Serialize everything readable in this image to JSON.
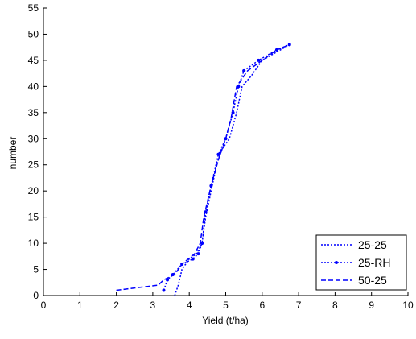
{
  "chart_data": {
    "type": "line",
    "xlabel": "Yield (t/ha)",
    "ylabel": "number",
    "xlim": [
      0,
      10
    ],
    "ylim": [
      0,
      55
    ],
    "xticks": [
      0,
      1,
      2,
      3,
      4,
      5,
      6,
      7,
      8,
      9,
      10
    ],
    "yticks": [
      0,
      5,
      10,
      15,
      20,
      25,
      30,
      35,
      40,
      45,
      50,
      55
    ],
    "legend": "lower right",
    "series": [
      {
        "name": "25-25",
        "color": "#0000ff",
        "style": "dotted",
        "x": [
          3.6,
          3.7,
          3.8,
          4.0,
          4.2,
          4.35,
          4.45,
          4.6,
          4.75,
          4.9,
          5.1,
          5.3,
          5.45,
          5.7,
          6.0,
          6.5,
          6.75
        ],
        "values": [
          0,
          2,
          5,
          7,
          8,
          10,
          15,
          20,
          25,
          28,
          30,
          35,
          40,
          42,
          45,
          47,
          48
        ]
      },
      {
        "name": "25-RH",
        "color": "#0000ff",
        "style": "dotted-marker",
        "x": [
          3.3,
          3.4,
          3.55,
          3.8,
          4.1,
          4.25,
          4.35,
          4.45,
          4.6,
          4.8,
          5.0,
          5.2,
          5.35,
          5.5,
          5.9,
          6.4,
          6.75
        ],
        "values": [
          1,
          3,
          4,
          6,
          7,
          8,
          10,
          16,
          21,
          27,
          30,
          35,
          40,
          43,
          45,
          47,
          48
        ]
      },
      {
        "name": "50-25",
        "color": "#0000ff",
        "style": "dashed",
        "x": [
          2.0,
          3.15,
          3.3,
          3.6,
          3.8,
          4.15,
          4.3,
          4.4,
          4.6,
          4.8,
          5.0,
          5.15,
          5.3,
          5.6,
          6.0,
          6.4,
          6.75
        ],
        "values": [
          1,
          2,
          3,
          4,
          6,
          8,
          10,
          15,
          21,
          26,
          30,
          34,
          40,
          43,
          45,
          47,
          48
        ]
      }
    ]
  }
}
